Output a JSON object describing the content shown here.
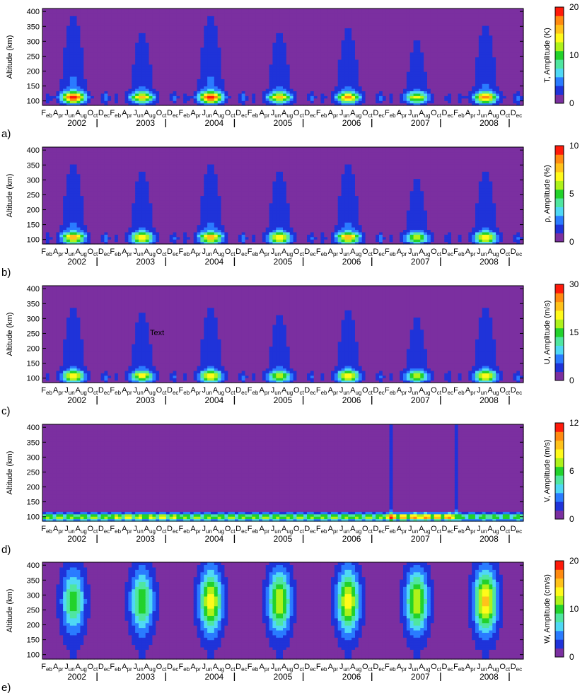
{
  "panel_labels": [
    "a)",
    "b)",
    "c)",
    "d)",
    "e)"
  ],
  "colors": {
    "levels": [
      "#7b2fa0",
      "#1f33d9",
      "#2a7bff",
      "#4fd8f5",
      "#4fe6a0",
      "#22d22b",
      "#aef21a",
      "#fffa1a",
      "#ffc21a",
      "#ff8a10",
      "#ff1a0a"
    ]
  },
  "chart_data": [
    {
      "type": "heatmap",
      "panel": "a)",
      "ylabel": "Altitude (km)",
      "yticks": [
        100,
        150,
        200,
        250,
        300,
        350,
        400
      ],
      "ylim": [
        85,
        410
      ],
      "month_labels": [
        [
          "F",
          "eb"
        ],
        [
          "A",
          "pr"
        ],
        [
          "J",
          "un"
        ],
        [
          "A",
          "ug"
        ],
        [
          "O",
          "ct"
        ],
        [
          "D",
          "ec"
        ],
        [
          "F",
          "eb"
        ],
        [
          "A",
          "pr"
        ],
        [
          "J",
          "un"
        ],
        [
          "A",
          "ug"
        ],
        [
          "O",
          "ct"
        ],
        [
          "D",
          "ec"
        ],
        [
          "F",
          "eb"
        ],
        [
          "A",
          "pr"
        ],
        [
          "J",
          "un"
        ],
        [
          "A",
          "ug"
        ],
        [
          "O",
          "ct"
        ],
        [
          "D",
          "ec"
        ],
        [
          "F",
          "eb"
        ],
        [
          "A",
          "pr"
        ],
        [
          "J",
          "un"
        ],
        [
          "A",
          "ug"
        ],
        [
          "O",
          "ct"
        ],
        [
          "D",
          "ec"
        ],
        [
          "F",
          "eb"
        ],
        [
          "A",
          "pr"
        ],
        [
          "J",
          "un"
        ],
        [
          "A",
          "ug"
        ],
        [
          "O",
          "ct"
        ],
        [
          "D",
          "ec"
        ],
        [
          "F",
          "eb"
        ],
        [
          "A",
          "pr"
        ],
        [
          "J",
          "un"
        ],
        [
          "A",
          "ug"
        ],
        [
          "O",
          "ct"
        ],
        [
          "D",
          "ec"
        ],
        [
          "F",
          "eb"
        ],
        [
          "A",
          "pr"
        ],
        [
          "J",
          "un"
        ],
        [
          "A",
          "ug"
        ],
        [
          "O",
          "ct"
        ],
        [
          "D",
          "ec"
        ]
      ],
      "years": [
        "2002",
        "2003",
        "2004",
        "2005",
        "2006",
        "2007",
        "2008"
      ],
      "colorbar": {
        "label": "T, Amplitude (K)",
        "ticks": [
          "0",
          "10",
          "20"
        ],
        "min": 0,
        "max": 20
      },
      "pattern": "lower",
      "peak_altitude_km": 110,
      "annual_peaks": [
        {
          "year": "2002",
          "peak": 19
        },
        {
          "year": "2003",
          "peak": 14
        },
        {
          "year": "2004",
          "peak": 19
        },
        {
          "year": "2005",
          "peak": 14
        },
        {
          "year": "2006",
          "peak": 15
        },
        {
          "year": "2007",
          "peak": 12
        },
        {
          "year": "2008",
          "peak": 16
        }
      ]
    },
    {
      "type": "heatmap",
      "panel": "b)",
      "ylabel": "Altitude (km)",
      "yticks": [
        100,
        150,
        200,
        250,
        300,
        350,
        400
      ],
      "ylim": [
        85,
        410
      ],
      "years": [
        "2002",
        "2003",
        "2004",
        "2005",
        "2006",
        "2007",
        "2008"
      ],
      "colorbar": {
        "label": "ρ, Amplitude (%)",
        "ticks": [
          "0",
          "5",
          "10"
        ],
        "min": 0,
        "max": 10
      },
      "pattern": "lower",
      "peak_altitude_km": 105,
      "annual_peaks": [
        {
          "year": "2002",
          "peak": 8
        },
        {
          "year": "2003",
          "peak": 7
        },
        {
          "year": "2004",
          "peak": 8
        },
        {
          "year": "2005",
          "peak": 7
        },
        {
          "year": "2006",
          "peak": 8
        },
        {
          "year": "2007",
          "peak": 6
        },
        {
          "year": "2008",
          "peak": 7
        }
      ]
    },
    {
      "type": "heatmap",
      "panel": "c)",
      "ylabel": "Altitude (km)",
      "yticks": [
        100,
        150,
        200,
        250,
        300,
        350,
        400
      ],
      "ylim": [
        85,
        410
      ],
      "years": [
        "2002",
        "2003",
        "2004",
        "2005",
        "2006",
        "2007",
        "2008"
      ],
      "colorbar": {
        "label": "U, Amplitude (m/s)",
        "ticks": [
          "0",
          "15",
          "30"
        ],
        "min": 0,
        "max": 30
      },
      "annotation": "Text",
      "pattern": "lower",
      "peak_altitude_km": 105,
      "annual_peaks": [
        {
          "year": "2002",
          "peak": 22
        },
        {
          "year": "2003",
          "peak": 20
        },
        {
          "year": "2004",
          "peak": 22
        },
        {
          "year": "2005",
          "peak": 19
        },
        {
          "year": "2006",
          "peak": 21
        },
        {
          "year": "2007",
          "peak": 18
        },
        {
          "year": "2008",
          "peak": 22
        }
      ]
    },
    {
      "type": "heatmap",
      "panel": "d)",
      "ylabel": "Altitude (km)",
      "yticks": [
        100,
        150,
        200,
        250,
        300,
        350,
        400
      ],
      "ylim": [
        85,
        410
      ],
      "years": [
        "2002",
        "2003",
        "2004",
        "2005",
        "2006",
        "2007",
        "2008"
      ],
      "colorbar": {
        "label": "V, Amplitude (m/s)",
        "ticks": [
          "0",
          "6",
          "12"
        ],
        "min": 0,
        "max": 12
      },
      "pattern": "band",
      "peak_altitude_km": 100,
      "annual_peaks": [
        {
          "year": "2002",
          "peak": 8
        },
        {
          "year": "2003",
          "peak": 9
        },
        {
          "year": "2004",
          "peak": 8
        },
        {
          "year": "2005",
          "peak": 8
        },
        {
          "year": "2006",
          "peak": 8
        },
        {
          "year": "2007",
          "peak": 11
        },
        {
          "year": "2008",
          "peak": 7
        }
      ]
    },
    {
      "type": "heatmap",
      "panel": "e)",
      "ylabel": "Altitude (km)",
      "yticks": [
        100,
        150,
        200,
        250,
        300,
        350,
        400
      ],
      "ylim": [
        85,
        410
      ],
      "years": [
        "2002",
        "2003",
        "2004",
        "2005",
        "2006",
        "2007",
        "2008"
      ],
      "colorbar": {
        "label": "W, Amplitude (cm/s)",
        "ticks": [
          "0",
          "10",
          "20"
        ],
        "min": 0,
        "max": 20
      },
      "pattern": "upper",
      "peak_altitude_km": 280,
      "annual_peaks": [
        {
          "year": "2002",
          "peak": 9
        },
        {
          "year": "2003",
          "peak": 10
        },
        {
          "year": "2004",
          "peak": 13
        },
        {
          "year": "2005",
          "peak": 12
        },
        {
          "year": "2006",
          "peak": 13
        },
        {
          "year": "2007",
          "peak": 12
        },
        {
          "year": "2008",
          "peak": 15
        }
      ]
    }
  ]
}
